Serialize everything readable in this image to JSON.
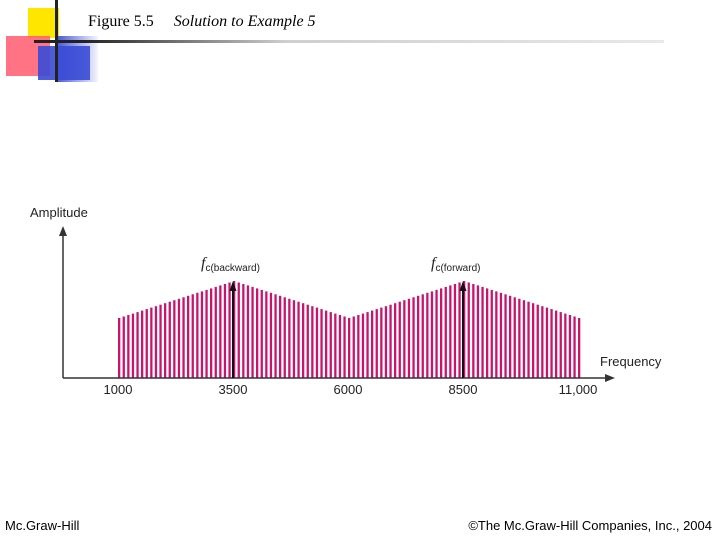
{
  "slide": {
    "figure_number": "Figure 5.5",
    "caption": "Solution to Example 5"
  },
  "footer": {
    "left": "Mc.Graw-Hill",
    "right": "©The Mc.Graw-Hill Companies, Inc., 2004"
  },
  "diagram": {
    "y_axis_label": "Amplitude",
    "x_axis_label": "Frequency",
    "tick_labels": [
      "1000",
      "3500",
      "6000",
      "8500",
      "11,000"
    ],
    "tick_values": [
      1000,
      3500,
      6000,
      8500,
      11000
    ],
    "carriers": [
      {
        "symbol": "f",
        "subscript": "c",
        "label": "(backward)",
        "frequency": 3500
      },
      {
        "symbol": "f",
        "subscript": "c",
        "label": "(forward)",
        "frequency": 8500
      }
    ],
    "colors": {
      "stripe": "#c8146e",
      "axis": "#333333",
      "carrier_line": "#111111"
    }
  }
}
